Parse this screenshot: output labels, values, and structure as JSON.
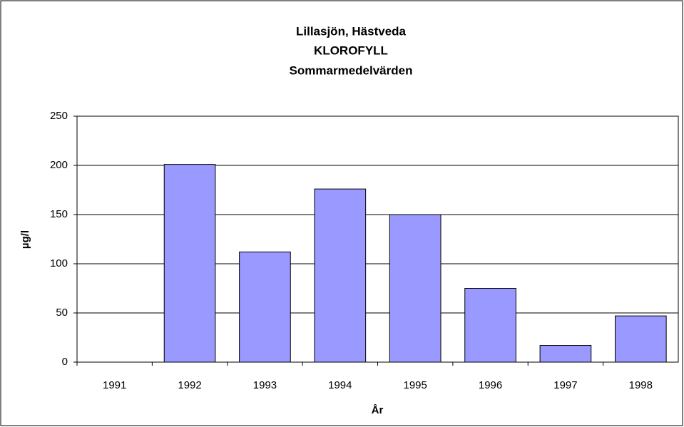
{
  "chart_data": {
    "type": "bar",
    "title": [
      "Lillasjön, Hästveda",
      "KLOROFYLL",
      "Sommarmedelvärden"
    ],
    "x_label": "År",
    "y_label": "µg/l",
    "categories": [
      "1991",
      "1992",
      "1993",
      "1994",
      "1995",
      "1996",
      "1997",
      "1998"
    ],
    "values": [
      null,
      201,
      112,
      176,
      150,
      75,
      17,
      47
    ],
    "color": "#9999ff",
    "ylim": [
      0,
      250
    ],
    "yticks": [
      0,
      50,
      100,
      150,
      200,
      250
    ],
    "grid": true
  }
}
